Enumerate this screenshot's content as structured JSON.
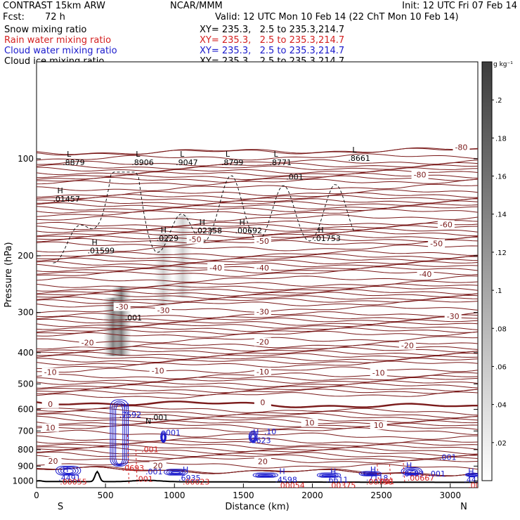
{
  "header": {
    "model": "CONTRAST 15km ARW",
    "center": "NCAR/MMM",
    "init": "Init: 12 UTC Fri 07 Feb 14",
    "fcst_label": "Fcst:",
    "fcst_value": "72 h",
    "valid": "Valid: 12 UTC Mon 10 Feb 14 (22 ChT Mon 10 Feb 14)"
  },
  "fields": [
    {
      "name": "Snow mixing ratio",
      "xy": "XY= 235.3,   2.5 to 235.3,214.7",
      "color": "#000000"
    },
    {
      "name": "Rain water mixing ratio",
      "xy": "XY= 235.3,   2.5 to 235.3,214.7",
      "color": "#d42020"
    },
    {
      "name": "Cloud water mixing ratio",
      "xy": "XY= 235.3,   2.5 to 235.3,214.7",
      "color": "#1a1acc"
    },
    {
      "name": "Cloud ice mixing ratio",
      "xy": "XY= 235.3,   2.5 to 235.3,214.7",
      "color": "#000000"
    }
  ],
  "chart_data": {
    "type": "cross-section",
    "xlabel": "Distance (km)",
    "ylabel": "Pressure (hPa)",
    "xlim": [
      0,
      3200
    ],
    "ylim": [
      1050,
      50
    ],
    "y_scale": "log",
    "x_ticks": [
      0,
      500,
      1000,
      1500,
      2000,
      2500,
      3000
    ],
    "y_ticks": [
      100,
      200,
      300,
      400,
      500,
      600,
      700,
      800,
      900,
      1000
    ],
    "x_end_labels": {
      "left": "S",
      "right": "N"
    },
    "colorbar": {
      "unit": "g kg⁻¹",
      "ticks": [
        ".02",
        ".04",
        ".06",
        ".08",
        ".1",
        ".12",
        ".14",
        ".16",
        ".18",
        ".2"
      ],
      "range": [
        0,
        0.22
      ]
    },
    "temperature_contours": {
      "color": "#7a1a1a",
      "levels": [
        -80,
        -70,
        -60,
        -50,
        -40,
        -30,
        -20,
        -10,
        0,
        10,
        20
      ],
      "labels": [
        {
          "text": "-80",
          "x": 3080,
          "p": 92
        },
        {
          "text": "-80",
          "x": 2780,
          "p": 112
        },
        {
          "text": "-60",
          "x": 2970,
          "p": 160
        },
        {
          "text": "-50",
          "x": 1150,
          "p": 178
        },
        {
          "text": "-50",
          "x": 1640,
          "p": 180
        },
        {
          "text": "-50",
          "x": 2900,
          "p": 183
        },
        {
          "text": "-40",
          "x": 1300,
          "p": 218
        },
        {
          "text": "-40",
          "x": 1640,
          "p": 218
        },
        {
          "text": "-40",
          "x": 2820,
          "p": 228
        },
        {
          "text": "-30",
          "x": 620,
          "p": 288
        },
        {
          "text": "-30",
          "x": 920,
          "p": 295
        },
        {
          "text": "-30",
          "x": 1640,
          "p": 298
        },
        {
          "text": "-30",
          "x": 3020,
          "p": 308
        },
        {
          "text": "-20",
          "x": 370,
          "p": 372
        },
        {
          "text": "-20",
          "x": 1640,
          "p": 370
        },
        {
          "text": "-20",
          "x": 2690,
          "p": 380
        },
        {
          "text": "-10",
          "x": 100,
          "p": 460
        },
        {
          "text": "-10",
          "x": 880,
          "p": 455
        },
        {
          "text": "-10",
          "x": 1640,
          "p": 458
        },
        {
          "text": "-10",
          "x": 2480,
          "p": 462
        },
        {
          "text": "0",
          "x": 100,
          "p": 577
        },
        {
          "text": "0",
          "x": 1640,
          "p": 570
        },
        {
          "text": "10",
          "x": 100,
          "p": 683
        },
        {
          "text": "10",
          "x": 1980,
          "p": 660
        },
        {
          "text": "10",
          "x": 2480,
          "p": 672
        },
        {
          "text": "20",
          "x": 120,
          "p": 868
        },
        {
          "text": "20",
          "x": 880,
          "p": 897
        },
        {
          "text": "20",
          "x": 1640,
          "p": 870
        }
      ]
    },
    "snow_extrema": [
      {
        "type": "L",
        "value": ".8879",
        "x": 220,
        "p": 100
      },
      {
        "type": "L",
        "value": ".8906",
        "x": 720,
        "p": 100
      },
      {
        "type": "L",
        "value": ".9047",
        "x": 1040,
        "p": 100
      },
      {
        "type": "L",
        "value": ".8799",
        "x": 1370,
        "p": 100
      },
      {
        "type": "L",
        "value": ".8771",
        "x": 1720,
        "p": 100
      },
      {
        "type": "L",
        "value": ".8661",
        "x": 2290,
        "p": 97
      },
      {
        "type": "H",
        "value": ".01457",
        "x": 150,
        "p": 130
      },
      {
        "type": "H",
        "value": ".01599",
        "x": 400,
        "p": 188
      },
      {
        "type": "H",
        "value": ".0229",
        "x": 900,
        "p": 172
      },
      {
        "type": "H",
        "value": ".02358",
        "x": 1180,
        "p": 163
      },
      {
        "type": "H",
        "value": ".00692",
        "x": 1470,
        "p": 163
      },
      {
        "type": "H",
        "value": ".01753",
        "x": 2040,
        "p": 172
      }
    ],
    "snow_labels": [
      {
        "value": ".001",
        "x": 1810,
        "p": 116
      },
      {
        "value": ".001",
        "x": 640,
        "p": 318
      }
    ],
    "cloud_water_extrema": [
      {
        "type": "H",
        "value": ".7592",
        "x": 630,
        "p": 607
      },
      {
        "type": "H",
        "value": ".1623",
        "x": 1570,
        "p": 730
      },
      {
        "type": "H",
        "value": ".4491",
        "x": 190,
        "p": 955
      },
      {
        "type": "H",
        "value": ".6935",
        "x": 1060,
        "p": 955
      },
      {
        "type": "H",
        "value": ".4598",
        "x": 1760,
        "p": 966
      },
      {
        "type": "H",
        "value": ".6611",
        "x": 2130,
        "p": 966
      },
      {
        "type": "H",
        "value": ".7118",
        "x": 2420,
        "p": 955
      },
      {
        "type": "H",
        "value": ".6683",
        "x": 2680,
        "p": 925
      },
      {
        "type": "H",
        "value": ".443",
        "x": 3130,
        "p": 966
      }
    ],
    "cloud_water_labels": [
      {
        "value": ".001",
        "x": 920,
        "p": 722
      },
      {
        "value": ".001",
        "x": 2920,
        "p": 860
      },
      {
        "value": ".001",
        "x": 790,
        "p": 955
      },
      {
        "value": ".001",
        "x": 2840,
        "p": 970
      },
      {
        "value": ".10",
        "x": 1650,
        "p": 716
      }
    ],
    "rain_extrema": [
      {
        "value": ".00055",
        "x": 200,
        "p": 982
      },
      {
        "value": ".00023",
        "x": 1090,
        "p": 982
      },
      {
        "value": ".00054",
        "x": 1780,
        "p": 1005
      },
      {
        "value": ".00375",
        "x": 2150,
        "p": 1005
      },
      {
        "value": ".00798",
        "x": 2420,
        "p": 982
      },
      {
        "value": ".00667",
        "x": 2720,
        "p": 955
      },
      {
        "value": ".000",
        "x": 3160,
        "p": 1005
      }
    ],
    "rain_labels": [
      {
        "value": ".0693",
        "x": 620,
        "p": 930
      },
      {
        "value": ".001",
        "x": 760,
        "p": 815
      },
      {
        "value": ".001",
        "x": 720,
        "p": 1005
      },
      {
        "value": ".001",
        "x": 2470,
        "p": 1025
      }
    ],
    "ice_labels": [
      {
        "value": "N",
        "x": 790,
        "p": 665
      },
      {
        "value": ".001",
        "x": 830,
        "p": 648
      }
    ]
  }
}
